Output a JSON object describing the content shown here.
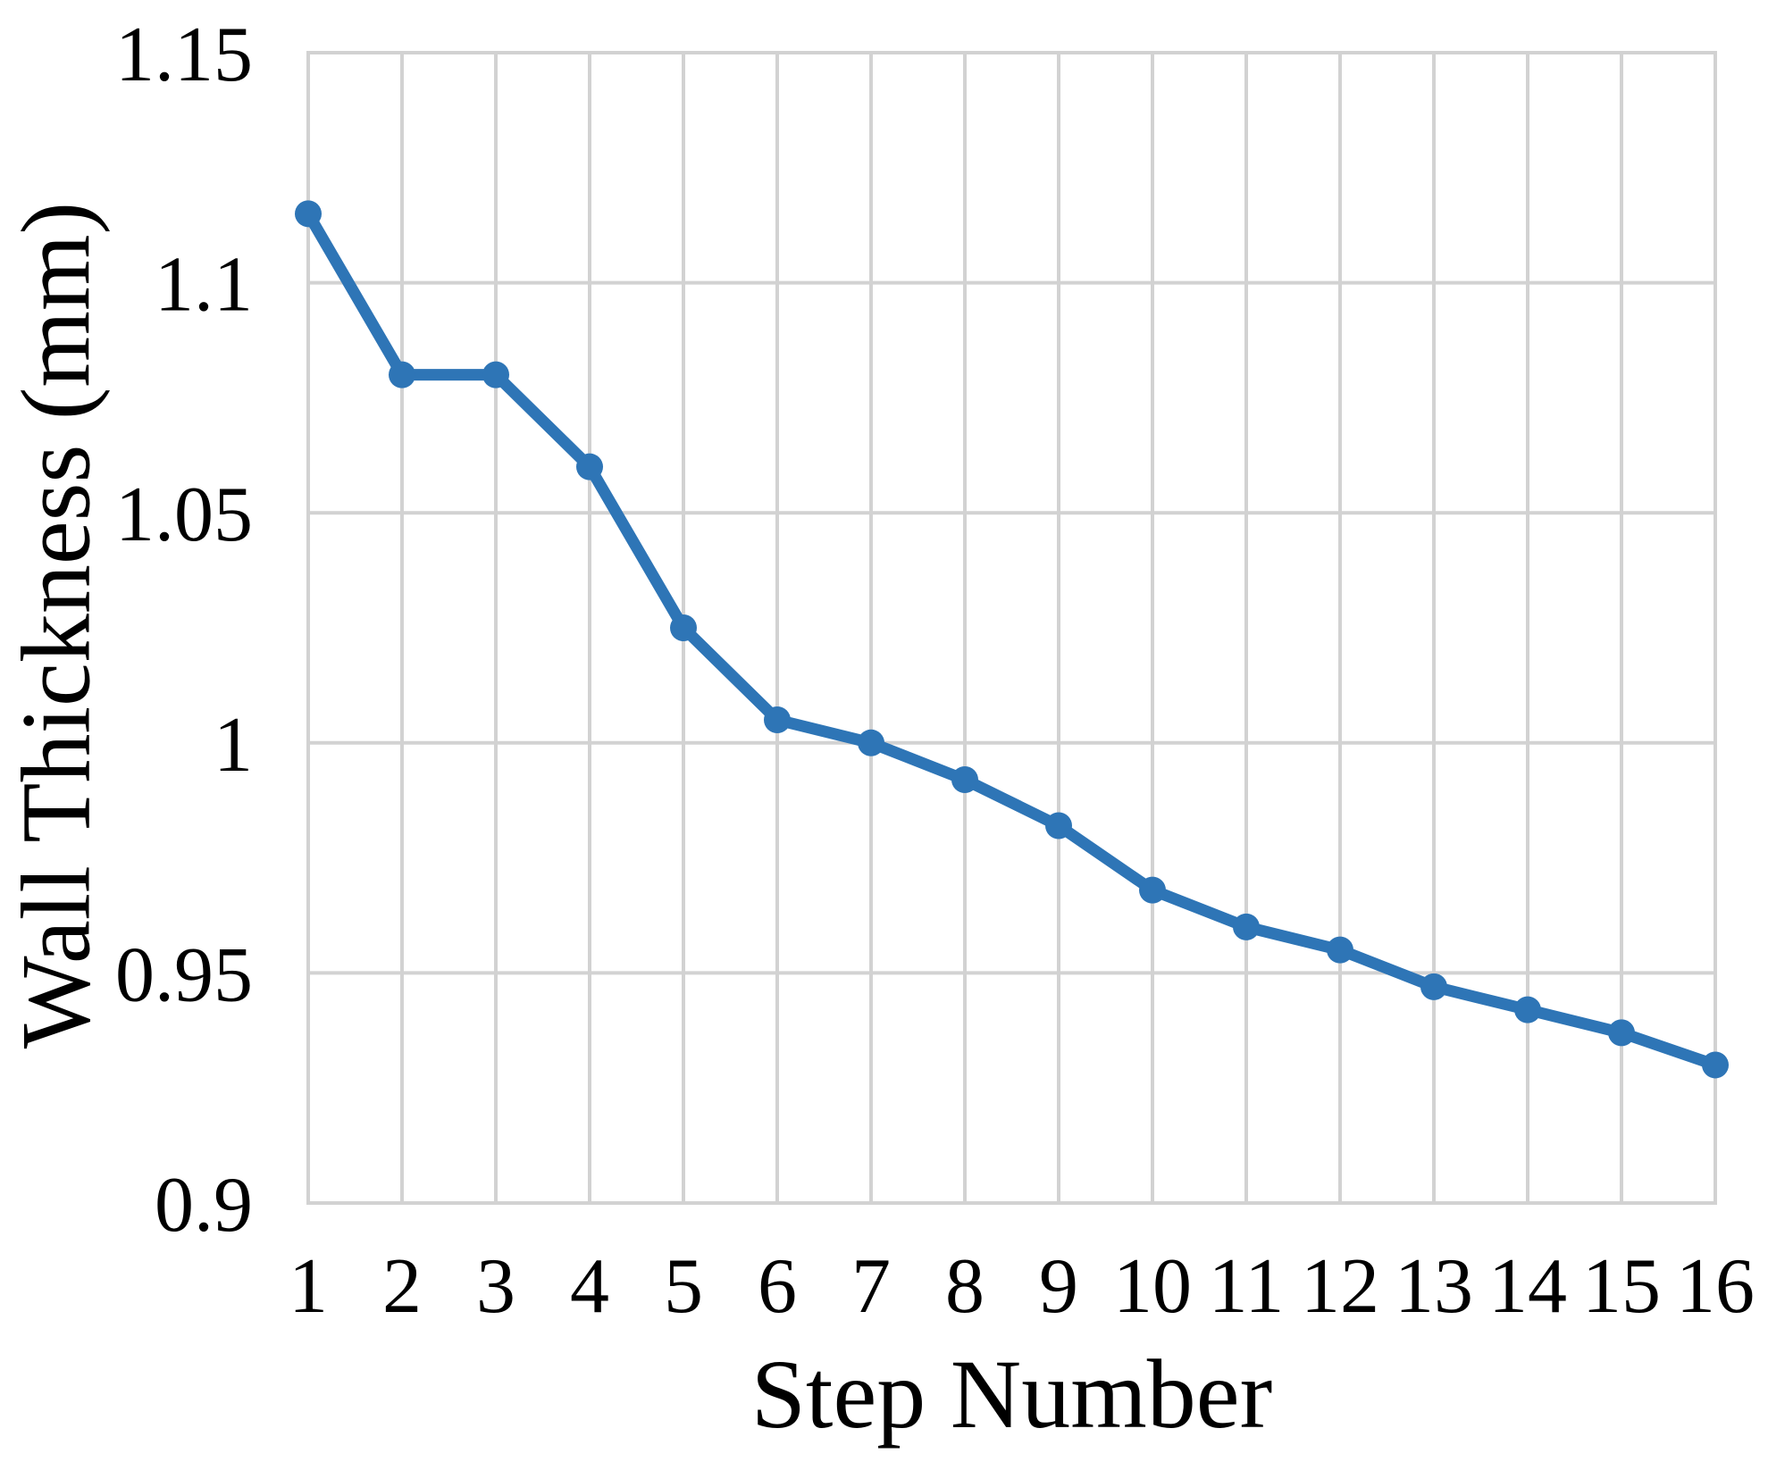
{
  "figure": {
    "background": "#ffffff",
    "text_color": "#000000"
  },
  "chart_data": {
    "type": "line",
    "title": "",
    "xlabel": "Step Number",
    "ylabel": "Wall Thickness (mm)",
    "categories": [
      "1",
      "2",
      "3",
      "4",
      "5",
      "6",
      "7",
      "8",
      "9",
      "10",
      "11",
      "12",
      "13",
      "14",
      "15",
      "16"
    ],
    "series": [
      {
        "name": "Wall Thickness",
        "values": [
          1.115,
          1.08,
          1.08,
          1.06,
          1.025,
          1.005,
          1.0,
          0.992,
          0.982,
          0.968,
          0.96,
          0.955,
          0.947,
          0.942,
          0.937,
          0.93
        ]
      }
    ],
    "ylim": [
      0.9,
      1.15
    ],
    "y_ticks": [
      1.15,
      1.1,
      1.05,
      1.0,
      0.95,
      0.9
    ],
    "y_tick_labels": [
      "1.15",
      "1.1",
      "1.05",
      "1",
      "0.95",
      "0.9"
    ],
    "grid": true,
    "legend": "none",
    "line_color": "#2E75B6",
    "marker_color": "#2E75B6",
    "grid_color": "#D2D2D2",
    "marker": "circle"
  }
}
